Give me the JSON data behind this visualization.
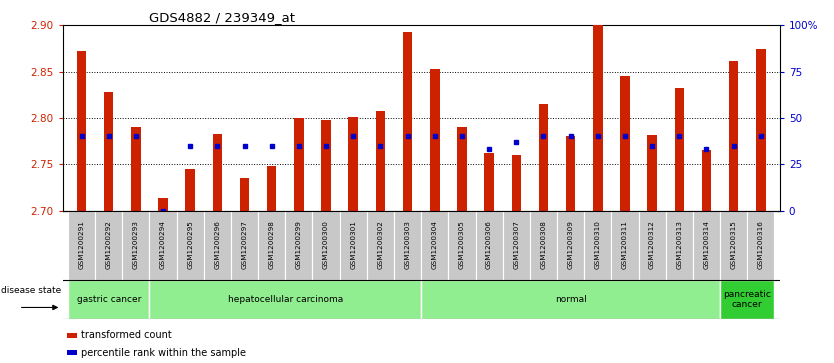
{
  "title": "GDS4882 / 239349_at",
  "samples": [
    "GSM1200291",
    "GSM1200292",
    "GSM1200293",
    "GSM1200294",
    "GSM1200295",
    "GSM1200296",
    "GSM1200297",
    "GSM1200298",
    "GSM1200299",
    "GSM1200300",
    "GSM1200301",
    "GSM1200302",
    "GSM1200303",
    "GSM1200304",
    "GSM1200305",
    "GSM1200306",
    "GSM1200307",
    "GSM1200308",
    "GSM1200309",
    "GSM1200310",
    "GSM1200311",
    "GSM1200312",
    "GSM1200313",
    "GSM1200314",
    "GSM1200315",
    "GSM1200316"
  ],
  "transformed_count": [
    2.872,
    2.828,
    2.79,
    2.714,
    2.745,
    2.783,
    2.735,
    2.748,
    2.8,
    2.798,
    2.801,
    2.808,
    2.893,
    2.853,
    2.79,
    2.762,
    2.76,
    2.815,
    2.78,
    2.902,
    2.845,
    2.782,
    2.832,
    2.765,
    2.862,
    2.874
  ],
  "percentile_rank": [
    40,
    40,
    40,
    0,
    35,
    35,
    35,
    35,
    35,
    35,
    40,
    35,
    40,
    40,
    40,
    33,
    37,
    40,
    40,
    40,
    40,
    35,
    40,
    33,
    35,
    40
  ],
  "groups": [
    {
      "label": "gastric cancer",
      "start": 0,
      "end": 3,
      "dark": false
    },
    {
      "label": "hepatocellular carcinoma",
      "start": 3,
      "end": 13,
      "dark": false
    },
    {
      "label": "normal",
      "start": 13,
      "end": 24,
      "dark": false
    },
    {
      "label": "pancreatic\ncancer",
      "start": 24,
      "end": 26,
      "dark": true
    }
  ],
  "ylim_left": [
    2.7,
    2.9
  ],
  "ylim_right": [
    0,
    100
  ],
  "yticks_left": [
    2.7,
    2.75,
    2.8,
    2.85,
    2.9
  ],
  "yticks_right": [
    0,
    25,
    50,
    75,
    100
  ],
  "ytick_labels_right": [
    "0",
    "25",
    "50",
    "75",
    "100%"
  ],
  "bar_color": "#CC2200",
  "percentile_color": "#0000CC",
  "bg_color": "#FFFFFF",
  "left_tick_color": "#CC2200",
  "right_tick_color": "#0000CC",
  "light_green": "#90EE90",
  "dark_green": "#32CD32",
  "xtick_bg": "#C8C8C8",
  "bar_width": 0.35
}
